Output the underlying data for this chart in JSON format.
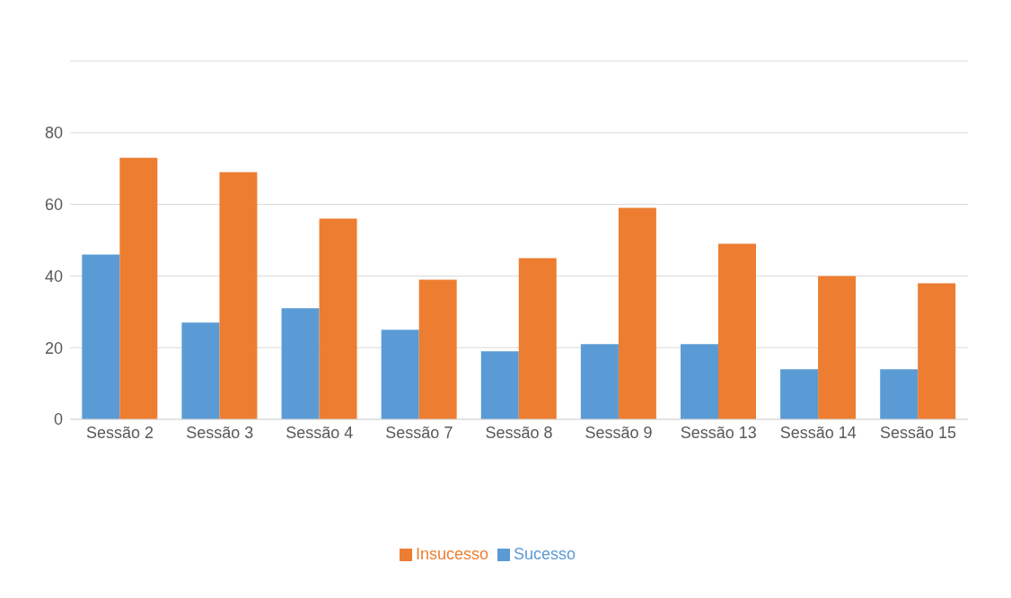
{
  "chart_data": {
    "type": "bar",
    "categories": [
      "Sessão 2",
      "Sessão 3",
      "Sessão 4",
      "Sessão 7",
      "Sessão 8",
      "Sessão 9",
      "Sessão 13",
      "Sessão 14",
      "Sessão 15"
    ],
    "series": [
      {
        "name": "Sucesso",
        "color": "#5b9bd5",
        "values": [
          46,
          27,
          31,
          25,
          19,
          21,
          21,
          14,
          14
        ]
      },
      {
        "name": "Insucesso",
        "color": "#ed7d31",
        "values": [
          73,
          69,
          56,
          39,
          45,
          59,
          49,
          40,
          38
        ]
      }
    ],
    "ylim": [
      0,
      100
    ],
    "yticks": [
      0,
      20,
      40,
      60,
      80,
      {
        "value": 100,
        "label": null
      }
    ],
    "grid": "y",
    "legend": "bottom"
  }
}
